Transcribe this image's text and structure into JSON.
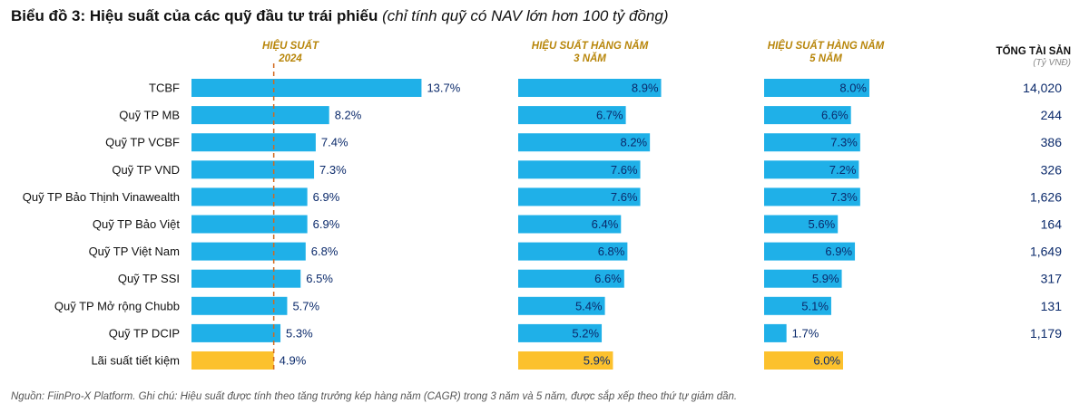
{
  "title": {
    "prefix": "Biểu đồ 3: Hiệu suất của các quỹ đầu tư trái phiếu",
    "note": "(chỉ tính quỹ có NAV lớn hơn 100 tỷ đồng)"
  },
  "headers": {
    "perf2024": [
      "HIỆU SUẤT",
      "2024"
    ],
    "annual3y": [
      "HIỆU SUẤT HÀNG NĂM",
      "3 NĂM"
    ],
    "annual5y": [
      "HIỆU SUẤT HÀNG NĂM",
      "5 NĂM"
    ],
    "assets": "TỔNG TÀI SẢN",
    "assets_unit": "(Tỷ VNĐ)"
  },
  "colors": {
    "bar": "#1fb0e8",
    "highlight": "#fcc12d",
    "header": "#b8860b",
    "value_text": "#0b2a6b",
    "reference_line": "#d2691e"
  },
  "chart_data": {
    "type": "bar",
    "orientation": "horizontal",
    "title": "Hiệu suất của các quỹ đầu tư trái phiếu",
    "categories": [
      "TCBF",
      "Quỹ TP MB",
      "Quỹ TP VCBF",
      "Quỹ TP VND",
      "Quỹ TP Bảo Thịnh Vinawealth",
      "Quỹ TP Bảo Việt",
      "Quỹ TP Việt Nam",
      "Quỹ TP SSI",
      "Quỹ TP Mở rộng Chubb",
      "Quỹ TP DCIP",
      "Lãi suất tiết kiệm"
    ],
    "highlight_category": "Lãi suất tiết kiệm",
    "reference_line": {
      "series": "Hiệu suất 2024",
      "value": 4.9
    },
    "series": [
      {
        "name": "Hiệu suất 2024",
        "unit": "%",
        "values": [
          13.7,
          8.2,
          7.4,
          7.3,
          6.9,
          6.9,
          6.8,
          6.5,
          5.7,
          5.3,
          4.9
        ]
      },
      {
        "name": "Hiệu suất hàng năm 3 năm",
        "unit": "%",
        "values": [
          8.9,
          6.7,
          8.2,
          7.6,
          7.6,
          6.4,
          6.8,
          6.6,
          5.4,
          5.2,
          5.9
        ]
      },
      {
        "name": "Hiệu suất hàng năm 5 năm",
        "unit": "%",
        "values": [
          8.0,
          6.6,
          7.3,
          7.2,
          7.3,
          5.6,
          6.9,
          5.9,
          5.1,
          1.7,
          6.0
        ]
      }
    ],
    "total_assets": {
      "name": "Tổng tài sản",
      "unit": "Tỷ VNĐ",
      "values": [
        "14,020",
        "244",
        "386",
        "326",
        "1,626",
        "164",
        "1,649",
        "317",
        "131",
        "1,179",
        ""
      ]
    }
  },
  "footnote": "Nguồn: FiinPro-X Platform. Ghi chú: Hiệu suất được tính theo tăng trưởng kép hàng năm (CAGR) trong 3 năm và 5 năm, được sắp xếp theo thứ tự giảm dần."
}
